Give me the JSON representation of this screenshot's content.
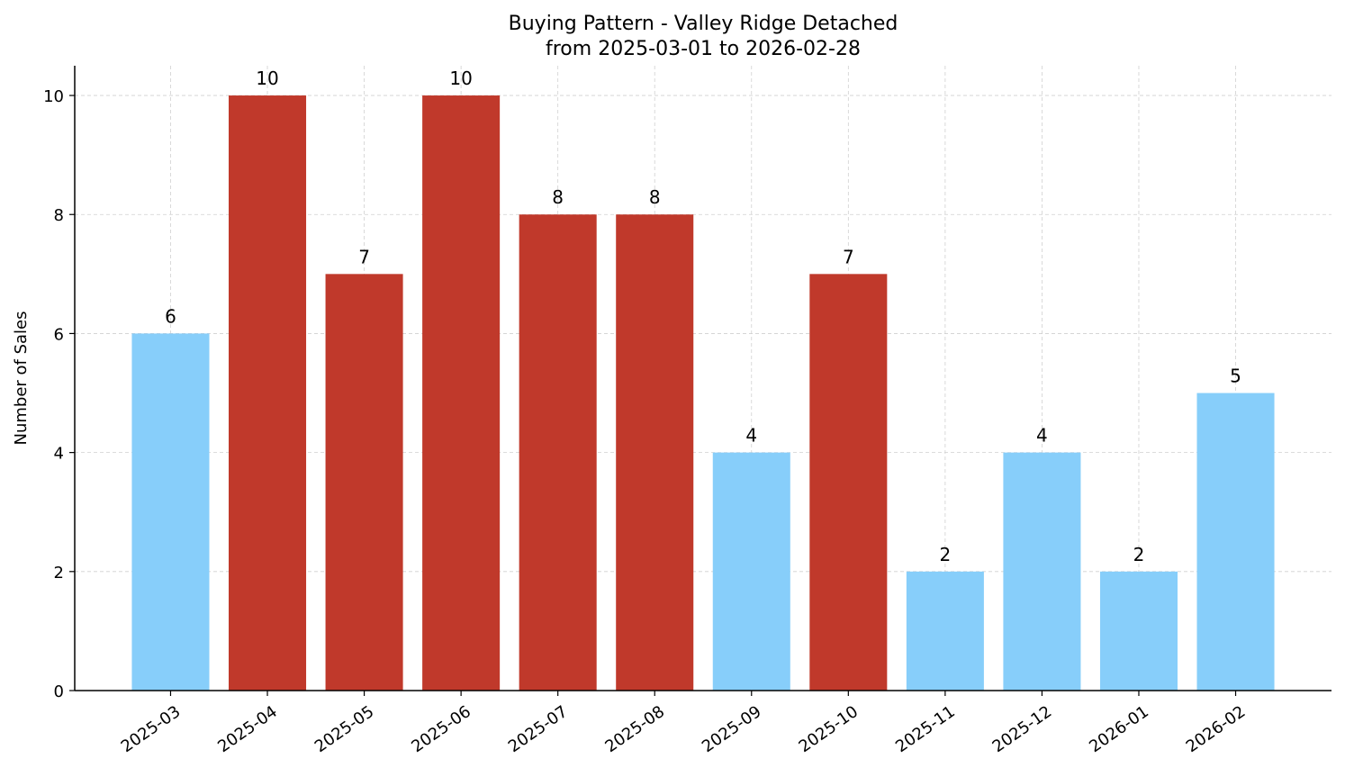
{
  "chart_data": {
    "type": "bar",
    "title": "Buying Pattern - Valley Ridge Detached",
    "subtitle": "from 2025-03-01 to 2026-02-28",
    "xlabel": "",
    "ylabel": "Number of Sales",
    "categories": [
      "2025-03",
      "2025-04",
      "2025-05",
      "2025-06",
      "2025-07",
      "2025-08",
      "2025-09",
      "2025-10",
      "2025-11",
      "2025-12",
      "2026-01",
      "2026-02"
    ],
    "values": [
      6,
      10,
      7,
      10,
      8,
      8,
      4,
      7,
      2,
      4,
      2,
      5
    ],
    "bar_colors": [
      "#87CEFA",
      "#C0392B",
      "#C0392B",
      "#C0392B",
      "#C0392B",
      "#C0392B",
      "#87CEFA",
      "#C0392B",
      "#87CEFA",
      "#87CEFA",
      "#87CEFA",
      "#87CEFA"
    ],
    "ylim": [
      0,
      10.5
    ],
    "yticks": [
      0,
      2,
      4,
      6,
      8,
      10
    ],
    "grid": true,
    "legend": "none",
    "data_labels": true,
    "xtick_rotation": 35
  }
}
